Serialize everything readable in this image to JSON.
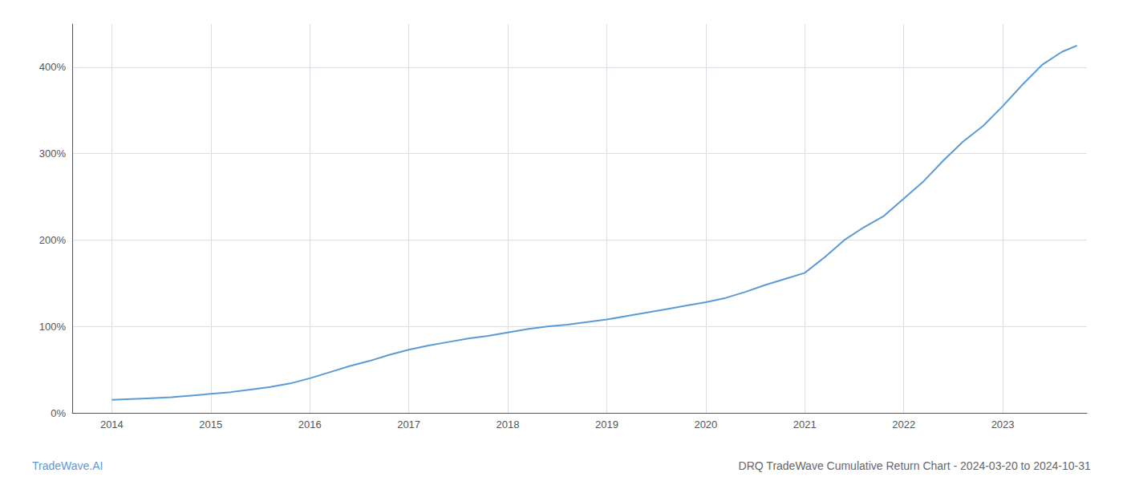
{
  "chart_data": {
    "type": "line",
    "x": [
      2014.0,
      2014.2,
      2014.4,
      2014.6,
      2014.8,
      2015.0,
      2015.2,
      2015.4,
      2015.6,
      2015.8,
      2016.0,
      2016.2,
      2016.4,
      2016.6,
      2016.8,
      2017.0,
      2017.2,
      2017.4,
      2017.6,
      2017.8,
      2018.0,
      2018.2,
      2018.4,
      2018.6,
      2018.8,
      2019.0,
      2019.2,
      2019.4,
      2019.6,
      2019.8,
      2020.0,
      2020.2,
      2020.4,
      2020.6,
      2020.8,
      2021.0,
      2021.2,
      2021.4,
      2021.6,
      2021.8,
      2022.0,
      2022.2,
      2022.4,
      2022.6,
      2022.8,
      2023.0,
      2023.2,
      2023.4,
      2023.6,
      2023.75
    ],
    "values": [
      15,
      16,
      17,
      18,
      20,
      22,
      24,
      27,
      30,
      34,
      40,
      47,
      54,
      60,
      67,
      73,
      78,
      82,
      86,
      89,
      93,
      97,
      100,
      102,
      105,
      108,
      112,
      116,
      120,
      124,
      128,
      133,
      140,
      148,
      155,
      162,
      180,
      200,
      215,
      228,
      248,
      268,
      292,
      314,
      332,
      355,
      380,
      403,
      418,
      425
    ],
    "color": "#5b9bd5",
    "xlim": [
      2013.6,
      2023.85
    ],
    "xticks": [
      2014,
      2015,
      2016,
      2017,
      2018,
      2019,
      2020,
      2021,
      2022,
      2023
    ],
    "ylim": [
      0,
      450
    ],
    "yticks": [
      {
        "value": 0,
        "label": "0%"
      },
      {
        "value": 100,
        "label": "100%"
      },
      {
        "value": 200,
        "label": "200%"
      },
      {
        "value": 300,
        "label": "300%"
      },
      {
        "value": 400,
        "label": "400%"
      }
    ],
    "grid": true,
    "annotations": [
      {
        "text": "TradeWave.AI",
        "color": "#5b9bd5"
      },
      {
        "text": "DRQ TradeWave Cumulative Return Chart - 2024-03-20 to 2024-10-31",
        "color": "#666666"
      }
    ]
  }
}
